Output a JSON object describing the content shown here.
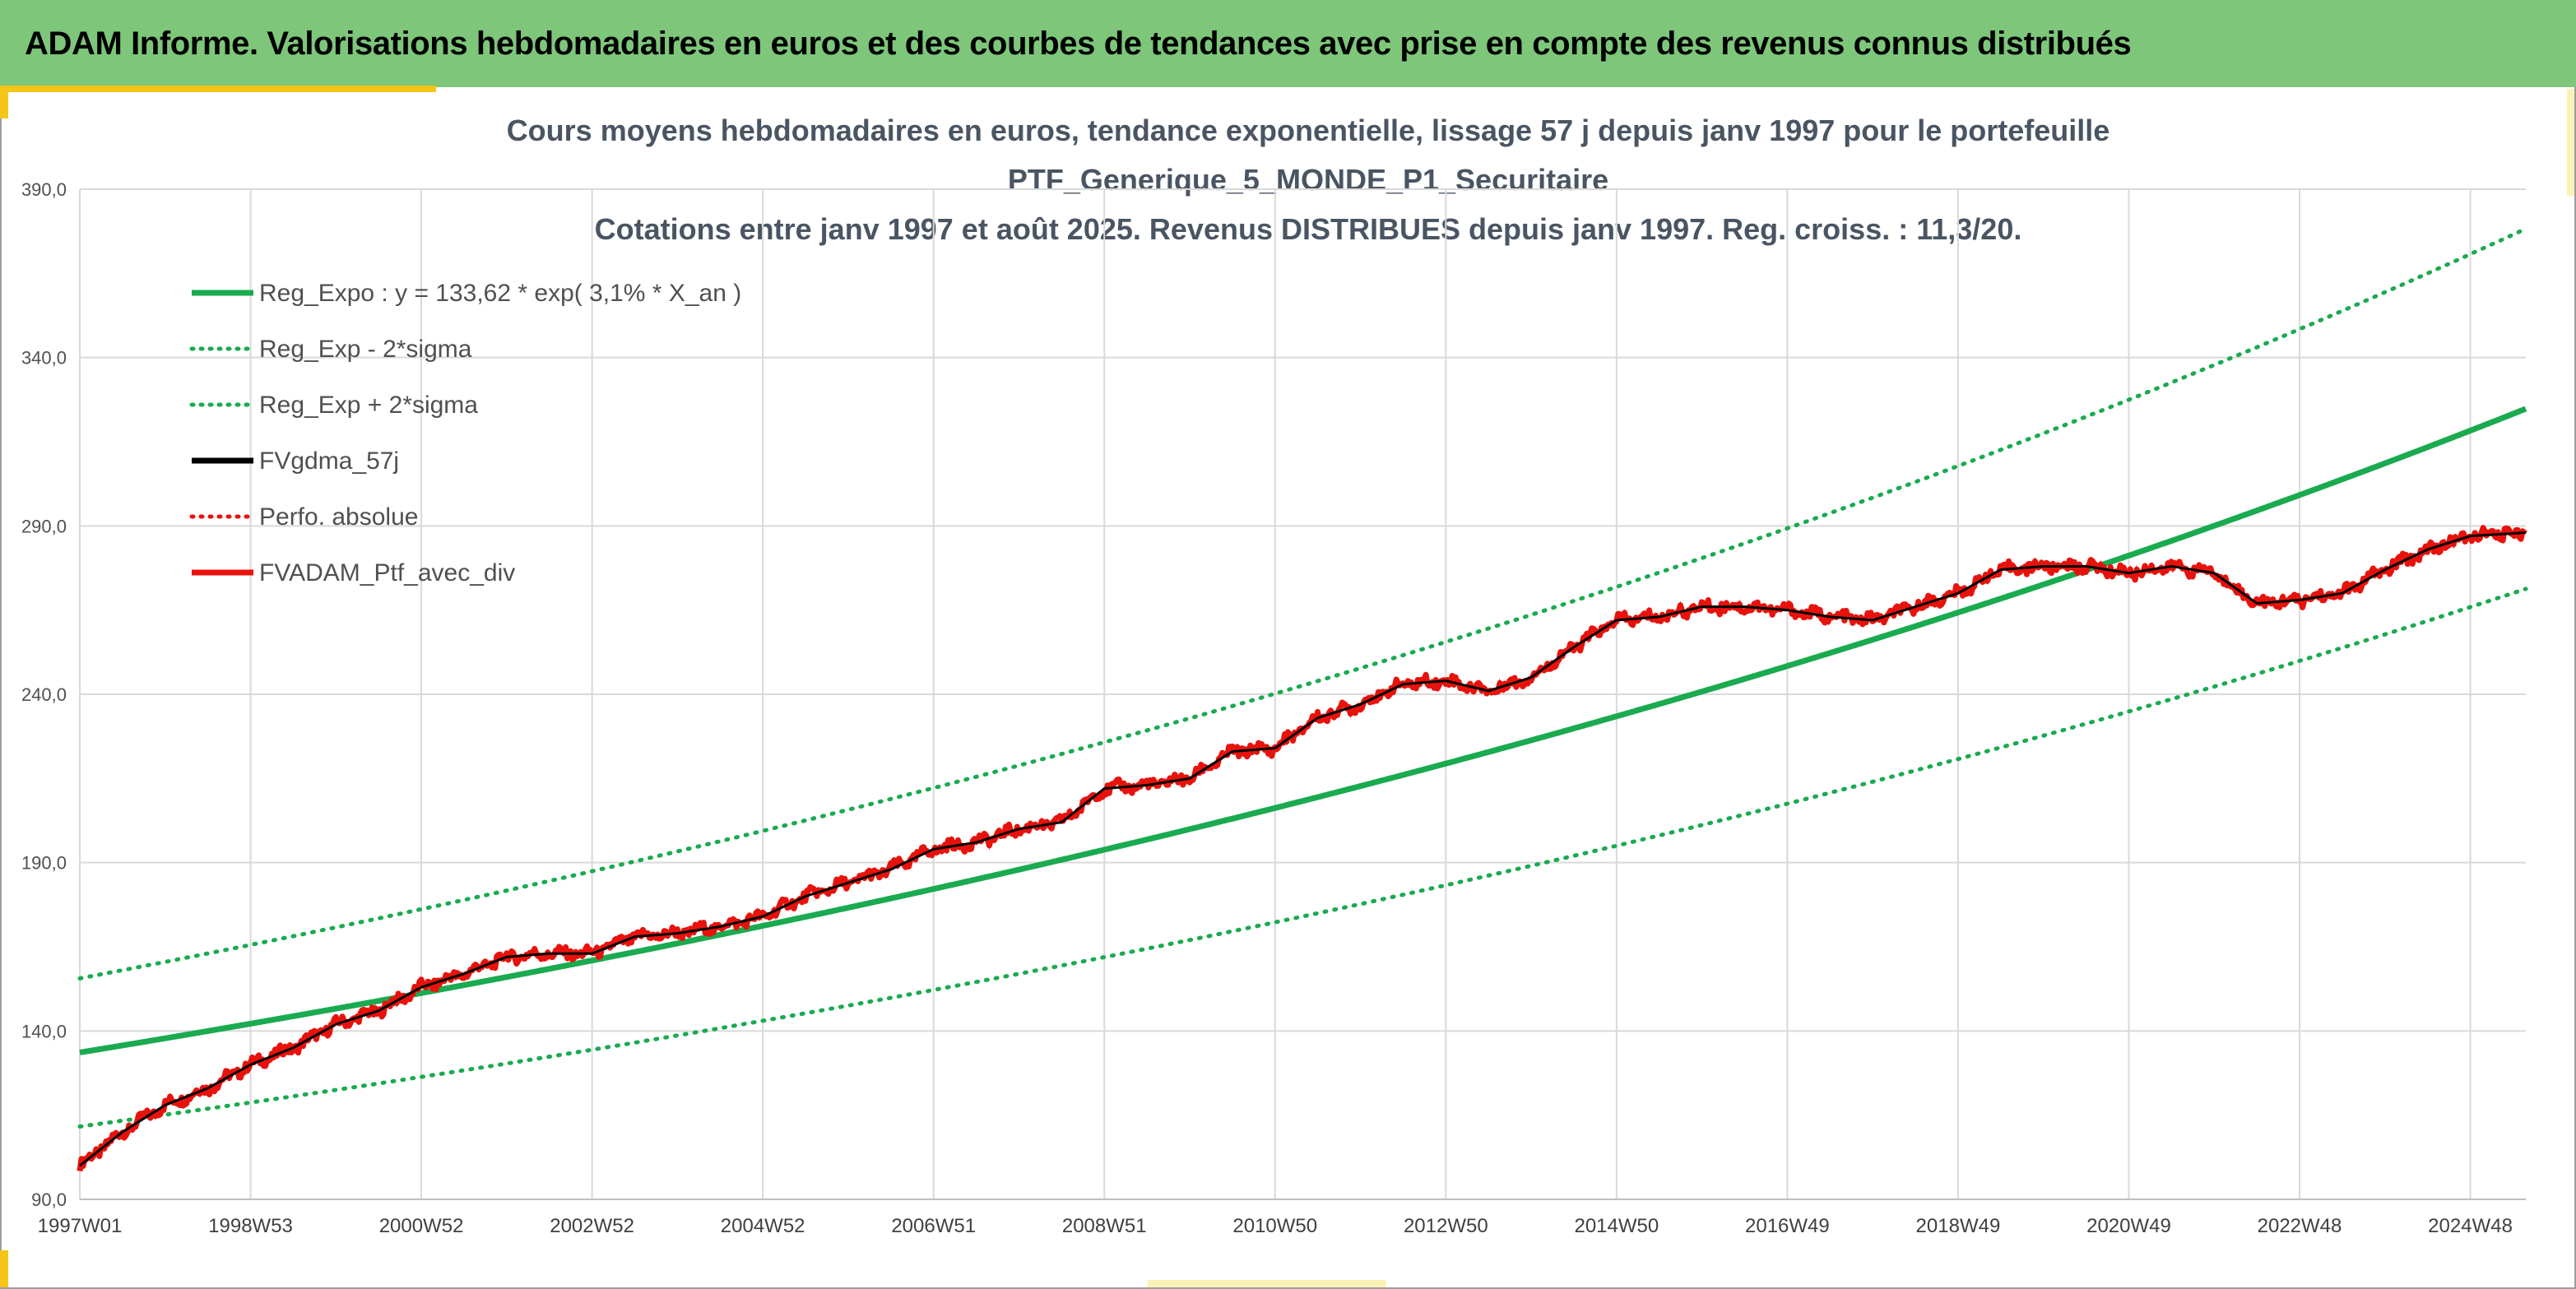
{
  "banner": {
    "title": "ADAM Informe. Valorisations hebdomadaires en euros et des courbes de tendances avec prise en compte des revenus connus distribués"
  },
  "colors": {
    "banner_bg": "#7dc67a",
    "accent": "#f5c518",
    "reg_green": "#1aaa50",
    "black": "#000000",
    "red": "#e8120c",
    "grid": "#d9d9d9"
  },
  "chart_data": {
    "type": "line",
    "title_lines": [
      "Cours moyens hebdomadaires en euros, tendance exponentielle, lissage 57 j depuis janv 1997 pour le portefeuille",
      "PTF_Generique_5_MONDE_P1_Securitaire",
      "Cotations entre janv 1997 et août 2025. Revenus DISTRIBUES depuis janv 1997. Reg. croiss. : 11,3/20."
    ],
    "xlabel": "",
    "ylabel": "",
    "ylim": [
      90,
      390
    ],
    "xlim": [
      1997.0,
      2025.65
    ],
    "y_ticks": [
      "90,0",
      "140,0",
      "190,0",
      "240,0",
      "290,0",
      "340,0",
      "390,0"
    ],
    "y_tick_values": [
      90,
      140,
      190,
      240,
      290,
      340,
      390
    ],
    "x_ticks": [
      "1997W01",
      "1998W53",
      "2000W52",
      "2002W52",
      "2004W52",
      "2006W51",
      "2008W51",
      "2010W50",
      "2012W50",
      "2014W50",
      "2016W49",
      "2018W49",
      "2020W49",
      "2022W48",
      "2024W48"
    ],
    "x_tick_values": [
      1997.0,
      1999.0,
      2001.0,
      2003.0,
      2005.0,
      2007.0,
      2009.0,
      2011.0,
      2013.0,
      2015.0,
      2017.0,
      2019.0,
      2021.0,
      2023.0,
      2025.0
    ],
    "grid": true,
    "legend_position": "top-left",
    "legend": [
      {
        "label": "Reg_Expo : y = 133,62 * exp( 3,1% *  X_an )",
        "style": "solid",
        "color": "#1aaa50"
      },
      {
        "label": "Reg_Exp - 2*sigma",
        "style": "dotted",
        "color": "#1aaa50"
      },
      {
        "label": "Reg_Exp + 2*sigma",
        "style": "dotted",
        "color": "#1aaa50"
      },
      {
        "label": "FVgdma_57j",
        "style": "solid",
        "color": "#000000"
      },
      {
        "label": "Perfo. absolue",
        "style": "dotted",
        "color": "#e8120c"
      },
      {
        "label": "FVADAM_Ptf_avec_div",
        "style": "solid",
        "color": "#e8120c"
      }
    ],
    "regression": {
      "a": 133.62,
      "rate": 0.031,
      "lower_offset_start": -22,
      "upper_offset_start": 22
    },
    "series": [
      {
        "name": "Reg_Expo : y = 133,62 * exp( 3,1% *  X_an )",
        "x": [
          1997.0,
          2000.0,
          2003.0,
          2006.0,
          2009.0,
          2012.0,
          2015.0,
          2018.0,
          2021.0,
          2024.0,
          2025.65
        ],
        "y": [
          133.6,
          146.7,
          161.0,
          176.8,
          194.1,
          213.1,
          234.0,
          256.9,
          282.0,
          309.7,
          325.9
        ]
      },
      {
        "name": "Reg_Exp - 2*sigma",
        "x": [
          1997.0,
          2000.0,
          2003.0,
          2006.0,
          2009.0,
          2012.0,
          2015.0,
          2018.0,
          2021.0,
          2024.0,
          2025.65
        ],
        "y": [
          112.0,
          123.0,
          135.0,
          148.3,
          162.8,
          178.7,
          196.2,
          215.4,
          236.5,
          259.7,
          273.3
        ]
      },
      {
        "name": "Reg_Exp + 2*sigma",
        "x": [
          1997.0,
          2000.0,
          2003.0,
          2006.0,
          2009.0,
          2012.0,
          2015.0,
          2018.0,
          2021.0,
          2024.0,
          2025.65
        ],
        "y": [
          159.0,
          174.6,
          191.7,
          210.5,
          231.1,
          253.7,
          278.6,
          305.9,
          335.8,
          368.7,
          388.0
        ]
      },
      {
        "name": "FVgdma_57j",
        "x": [
          1997.0,
          1997.5,
          1998.0,
          1998.5,
          1999.0,
          1999.5,
          2000.0,
          2000.5,
          2001.0,
          2001.5,
          2002.0,
          2002.5,
          2003.0,
          2003.5,
          2004.0,
          2004.5,
          2005.0,
          2005.5,
          2006.0,
          2006.5,
          2007.0,
          2007.5,
          2008.0,
          2008.5,
          2009.0,
          2009.5,
          2010.0,
          2010.5,
          2011.0,
          2011.5,
          2012.0,
          2012.5,
          2013.0,
          2013.5,
          2014.0,
          2014.5,
          2015.0,
          2015.5,
          2016.0,
          2016.5,
          2017.0,
          2017.5,
          2018.0,
          2018.5,
          2019.0,
          2019.5,
          2020.0,
          2020.5,
          2021.0,
          2021.5,
          2022.0,
          2022.5,
          2023.0,
          2023.5,
          2024.0,
          2024.5,
          2025.0,
          2025.65
        ],
        "y": [
          100,
          110,
          118,
          123,
          130,
          135,
          142,
          146,
          153,
          157,
          162,
          163,
          163,
          168,
          169,
          171,
          174,
          180,
          184,
          188,
          194,
          196,
          200,
          202,
          212,
          213,
          215,
          223,
          224,
          233,
          237,
          243,
          244,
          241,
          245,
          254,
          262,
          263,
          266,
          266,
          265,
          263,
          262,
          266,
          270,
          277,
          278,
          278,
          276,
          278,
          276,
          267,
          268,
          270,
          277,
          283,
          287,
          288
        ]
      },
      {
        "name": "Perfo. absolue",
        "x": [
          1997.0,
          1997.5,
          1998.0,
          1998.5,
          1999.0,
          1999.5,
          2000.0,
          2000.5,
          2001.0,
          2001.5,
          2002.0,
          2002.5,
          2003.0,
          2003.5,
          2004.0,
          2004.5,
          2005.0,
          2005.5,
          2006.0,
          2006.5,
          2007.0,
          2007.5,
          2008.0,
          2008.5,
          2009.0,
          2009.5,
          2010.0,
          2010.5,
          2011.0,
          2011.5,
          2012.0,
          2012.5,
          2013.0,
          2013.5,
          2014.0,
          2014.5,
          2015.0,
          2015.5,
          2016.0,
          2016.5,
          2017.0,
          2017.5,
          2018.0,
          2018.5,
          2019.0,
          2019.5,
          2020.0,
          2020.5,
          2021.0,
          2021.5,
          2022.0,
          2022.5,
          2023.0,
          2023.5,
          2024.0,
          2024.5,
          2025.0,
          2025.65
        ],
        "y": [
          100,
          110,
          118,
          123,
          130,
          135,
          142,
          146,
          153,
          157,
          162,
          163,
          163,
          168,
          169,
          171,
          174,
          180,
          184,
          188,
          194,
          196,
          200,
          202,
          212,
          213,
          215,
          223,
          224,
          233,
          237,
          243,
          244,
          241,
          245,
          254,
          262,
          263,
          266,
          266,
          265,
          263,
          262,
          266,
          270,
          277,
          278,
          278,
          276,
          278,
          276,
          267,
          268,
          270,
          277,
          283,
          287,
          288
        ]
      },
      {
        "name": "FVADAM_Ptf_avec_div",
        "x": [
          1997.0,
          1997.5,
          1998.0,
          1998.5,
          1999.0,
          1999.5,
          2000.0,
          2000.5,
          2001.0,
          2001.5,
          2002.0,
          2002.5,
          2003.0,
          2003.5,
          2004.0,
          2004.5,
          2005.0,
          2005.5,
          2006.0,
          2006.5,
          2007.0,
          2007.5,
          2008.0,
          2008.5,
          2009.0,
          2009.5,
          2010.0,
          2010.5,
          2011.0,
          2011.5,
          2012.0,
          2012.5,
          2013.0,
          2013.5,
          2014.0,
          2014.5,
          2015.0,
          2015.5,
          2016.0,
          2016.5,
          2017.0,
          2017.5,
          2018.0,
          2018.5,
          2019.0,
          2019.5,
          2020.0,
          2020.5,
          2021.0,
          2021.5,
          2022.0,
          2022.5,
          2023.0,
          2023.5,
          2024.0,
          2024.5,
          2025.0,
          2025.65
        ],
        "y": [
          100,
          110,
          118,
          123,
          130,
          135,
          142,
          146,
          153,
          157,
          162,
          163,
          163,
          168,
          169,
          171,
          174,
          180,
          184,
          188,
          194,
          196,
          200,
          202,
          212,
          213,
          215,
          223,
          224,
          233,
          237,
          243,
          244,
          241,
          245,
          254,
          262,
          263,
          266,
          266,
          265,
          263,
          262,
          266,
          270,
          277,
          278,
          278,
          276,
          278,
          276,
          267,
          268,
          270,
          277,
          283,
          287,
          288
        ]
      }
    ]
  }
}
